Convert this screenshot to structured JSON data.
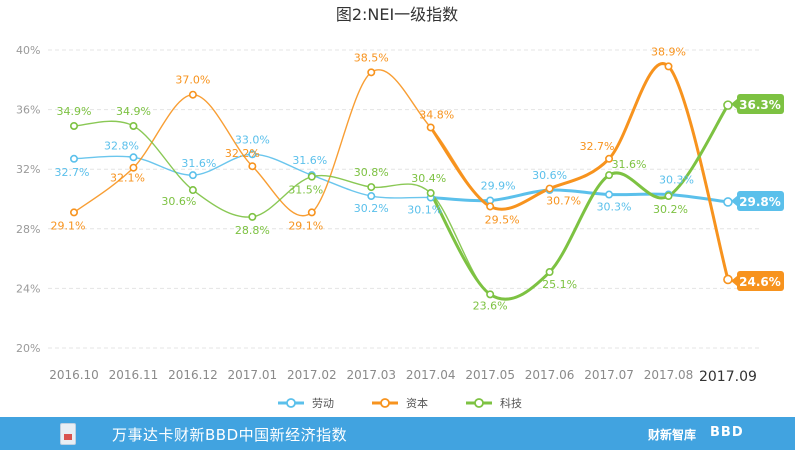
{
  "chart_data": {
    "type": "line",
    "title": "图2:NEI一级指数",
    "categories": [
      "2016.10",
      "2016.11",
      "2016.12",
      "2017.01",
      "2017.02",
      "2017.03",
      "2017.04",
      "2017.05",
      "2017.06",
      "2017.07",
      "2017.08",
      "2017.09"
    ],
    "y_ticks": [
      "20%",
      "24%",
      "28%",
      "32%",
      "36%",
      "40%"
    ],
    "ylim": [
      20,
      40
    ],
    "grid": true,
    "legend_position": "bottom",
    "series": [
      {
        "name": "劳动",
        "color": "#5bc0eb",
        "values": [
          32.7,
          32.8,
          31.6,
          33.0,
          31.6,
          30.2,
          30.1,
          29.9,
          30.6,
          30.3,
          30.3,
          29.8
        ],
        "labels": [
          "32.7%",
          "32.8%",
          "31.6%",
          "33.0%",
          "31.6%",
          "30.2%",
          "30.1%",
          "29.9%",
          "30.6%",
          "30.3%",
          "30.3%",
          "29.8%"
        ]
      },
      {
        "name": "资本",
        "color": "#f7931e",
        "values": [
          29.1,
          32.1,
          37.0,
          32.2,
          29.1,
          38.5,
          34.8,
          29.5,
          30.7,
          32.7,
          38.9,
          24.6
        ],
        "labels": [
          "29.1%",
          "32.1%",
          "37.0%",
          "32.2%",
          "29.1%",
          "38.5%",
          "34.8%",
          "29.5%",
          "30.7%",
          "32.7%",
          "38.9%",
          "24.6%"
        ]
      },
      {
        "name": "科技",
        "color": "#7dc242",
        "values": [
          34.9,
          34.9,
          30.6,
          28.8,
          31.5,
          30.8,
          30.4,
          23.6,
          25.1,
          31.6,
          30.2,
          36.3
        ],
        "labels": [
          "34.9%",
          "34.9%",
          "30.6%",
          "28.8%",
          "31.5%",
          "30.8%",
          "30.4%",
          "23.6%",
          "25.1%",
          "31.6%",
          "30.2%",
          "36.3%"
        ]
      }
    ]
  },
  "footer": {
    "text": "万事达卡财新BBD中国新经济指数",
    "brand1": "财新智库",
    "brand2": "BBD"
  }
}
